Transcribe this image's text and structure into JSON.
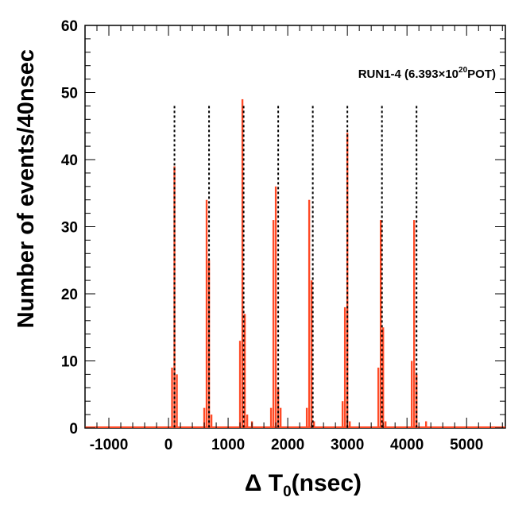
{
  "chart_data": {
    "type": "bar",
    "bin_width_nsec": 40,
    "xlabel": "Δ T0(nsec)",
    "xlabel_parts": {
      "prefix": "Δ T",
      "sub": "0",
      "suffix": "(nsec)"
    },
    "ylabel": "Number of events/40nsec",
    "xlim": [
      -1400,
      5650
    ],
    "ylim": [
      0,
      60
    ],
    "x_ticks": [
      -1000,
      0,
      1000,
      2000,
      3000,
      4000,
      5000
    ],
    "x_tick_labels": [
      "-1000",
      "0",
      "1000",
      "2000",
      "3000",
      "4000",
      "5000"
    ],
    "y_ticks": [
      0,
      10,
      20,
      30,
      40,
      50,
      60
    ],
    "y_tick_labels": [
      "0",
      "10",
      "20",
      "30",
      "40",
      "50",
      "60"
    ],
    "annotation": {
      "prefix": "RUN1-4 (6.393×10",
      "sup": "20",
      "suffix": "POT)"
    },
    "bar_color": "#ff4a26",
    "dashed_line_color": "#000000",
    "bunch_markers": [
      100,
      680,
      1260,
      1840,
      2420,
      3000,
      3580,
      4160
    ],
    "bunch_marker_height": 48,
    "bins": [
      {
        "x": 60,
        "y": 9
      },
      {
        "x": 100,
        "y": 39
      },
      {
        "x": 140,
        "y": 8
      },
      {
        "x": 600,
        "y": 3
      },
      {
        "x": 640,
        "y": 34
      },
      {
        "x": 680,
        "y": 25
      },
      {
        "x": 720,
        "y": 2
      },
      {
        "x": 1200,
        "y": 13
      },
      {
        "x": 1240,
        "y": 49
      },
      {
        "x": 1280,
        "y": 17
      },
      {
        "x": 1320,
        "y": 2
      },
      {
        "x": 1400,
        "y": 1
      },
      {
        "x": 1720,
        "y": 3
      },
      {
        "x": 1760,
        "y": 31
      },
      {
        "x": 1800,
        "y": 36
      },
      {
        "x": 1840,
        "y": 6
      },
      {
        "x": 1880,
        "y": 3
      },
      {
        "x": 2320,
        "y": 3
      },
      {
        "x": 2360,
        "y": 34
      },
      {
        "x": 2400,
        "y": 22
      },
      {
        "x": 2440,
        "y": 1
      },
      {
        "x": 2920,
        "y": 4
      },
      {
        "x": 2960,
        "y": 18
      },
      {
        "x": 3000,
        "y": 44
      },
      {
        "x": 3040,
        "y": 1
      },
      {
        "x": 3520,
        "y": 9
      },
      {
        "x": 3560,
        "y": 31
      },
      {
        "x": 3600,
        "y": 15
      },
      {
        "x": 3640,
        "y": 1
      },
      {
        "x": 4080,
        "y": 10
      },
      {
        "x": 4120,
        "y": 31
      },
      {
        "x": 4160,
        "y": 8
      },
      {
        "x": 4320,
        "y": 1
      }
    ]
  }
}
